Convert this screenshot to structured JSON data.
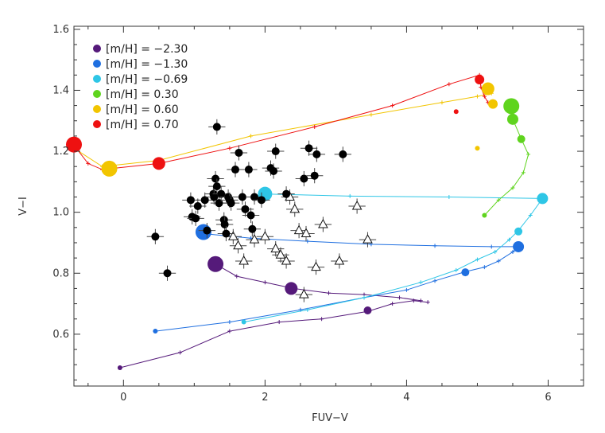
{
  "chart_data": {
    "type": "scatter",
    "xlabel": "FUV−V",
    "ylabel": "V−I",
    "xlim": [
      -0.7,
      6.5
    ],
    "ylim": [
      0.43,
      1.61
    ],
    "x_ticks": [
      0,
      2,
      4,
      6
    ],
    "y_ticks": [
      0.6,
      0.8,
      1.0,
      1.2,
      1.4,
      1.6
    ],
    "legend_position": "top-left",
    "series": [
      {
        "name": "[m/H] = −2.30",
        "color": "#551a7a",
        "track": [
          [
            -0.05,
            0.49
          ],
          [
            0.8,
            0.54
          ],
          [
            1.5,
            0.61
          ],
          [
            2.2,
            0.64
          ],
          [
            2.8,
            0.65
          ],
          [
            3.45,
            0.675
          ],
          [
            3.8,
            0.7
          ],
          [
            4.1,
            0.71
          ],
          [
            4.3,
            0.705
          ]
        ],
        "loop": [
          [
            1.3,
            0.83
          ],
          [
            1.6,
            0.79
          ],
          [
            2.0,
            0.77
          ],
          [
            2.4,
            0.75
          ],
          [
            2.9,
            0.735
          ],
          [
            3.4,
            0.73
          ],
          [
            3.9,
            0.72
          ],
          [
            4.2,
            0.71
          ]
        ],
        "markers": [
          [
            -0.05,
            0.49,
            3
          ],
          [
            3.45,
            0.678,
            5
          ],
          [
            2.37,
            0.75,
            8
          ],
          [
            1.3,
            0.83,
            10
          ]
        ]
      },
      {
        "name": "[m/H] = −1.30",
        "color": "#1f6fe0",
        "track": [
          [
            0.45,
            0.61
          ],
          [
            1.5,
            0.64
          ],
          [
            2.5,
            0.68
          ],
          [
            3.4,
            0.72
          ],
          [
            4.0,
            0.745
          ],
          [
            4.4,
            0.775
          ],
          [
            4.83,
            0.805
          ],
          [
            5.1,
            0.82
          ],
          [
            5.3,
            0.84
          ],
          [
            5.5,
            0.87
          ],
          [
            5.58,
            0.887
          ]
        ],
        "loop": [
          [
            1.13,
            0.93
          ],
          [
            1.8,
            0.915
          ],
          [
            2.6,
            0.905
          ],
          [
            3.5,
            0.895
          ],
          [
            4.4,
            0.89
          ],
          [
            5.2,
            0.887
          ],
          [
            5.58,
            0.887
          ]
        ],
        "markers": [
          [
            0.45,
            0.61,
            3
          ],
          [
            4.83,
            0.803,
            5
          ],
          [
            5.58,
            0.887,
            7
          ],
          [
            1.13,
            0.935,
            10
          ]
        ]
      },
      {
        "name": "[m/H] = −0.69",
        "color": "#2ec6e6",
        "track": [
          [
            1.7,
            0.64
          ],
          [
            2.6,
            0.68
          ],
          [
            3.4,
            0.72
          ],
          [
            4.2,
            0.77
          ],
          [
            4.7,
            0.81
          ],
          [
            5.0,
            0.845
          ],
          [
            5.25,
            0.87
          ],
          [
            5.45,
            0.91
          ],
          [
            5.58,
            0.94
          ],
          [
            5.75,
            0.99
          ],
          [
            5.92,
            1.045
          ]
        ],
        "loop": [
          [
            2.0,
            1.06
          ],
          [
            3.2,
            1.053
          ],
          [
            4.6,
            1.05
          ],
          [
            5.92,
            1.045
          ]
        ],
        "markers": [
          [
            1.7,
            0.64,
            3
          ],
          [
            5.58,
            0.937,
            5
          ],
          [
            5.92,
            1.045,
            7
          ],
          [
            2.0,
            1.06,
            9
          ]
        ]
      },
      {
        "name": "[m/H] = 0.30",
        "color": "#5fd41e",
        "track": [
          [
            5.1,
            0.99
          ],
          [
            5.3,
            1.04
          ],
          [
            5.5,
            1.08
          ],
          [
            5.65,
            1.13
          ],
          [
            5.72,
            1.19
          ],
          [
            5.62,
            1.24
          ],
          [
            5.5,
            1.305
          ],
          [
            5.48,
            1.348
          ]
        ],
        "markers": [
          [
            5.1,
            0.99,
            3
          ],
          [
            5.62,
            1.24,
            5
          ],
          [
            5.5,
            1.305,
            7
          ],
          [
            5.48,
            1.348,
            10
          ]
        ]
      },
      {
        "name": "[m/H] = 0.60",
        "color": "#f2c500",
        "track": [
          [
            -0.7,
            1.21
          ],
          [
            -0.3,
            1.15
          ],
          [
            0.5,
            1.17
          ],
          [
            1.8,
            1.25
          ],
          [
            3.5,
            1.32
          ],
          [
            4.5,
            1.36
          ],
          [
            5.0,
            1.38
          ],
          [
            5.2,
            1.39
          ]
        ],
        "markers": [
          [
            5.0,
            1.21,
            3
          ],
          [
            5.22,
            1.355,
            6
          ],
          [
            5.15,
            1.405,
            8
          ],
          [
            -0.2,
            1.143,
            10
          ]
        ]
      },
      {
        "name": "[m/H] = 0.70",
        "color": "#ee1111",
        "track": [
          [
            -0.7,
            1.22
          ],
          [
            -0.5,
            1.16
          ],
          [
            -0.3,
            1.14
          ],
          [
            0.5,
            1.16
          ],
          [
            1.5,
            1.21
          ],
          [
            2.7,
            1.28
          ],
          [
            3.8,
            1.35
          ],
          [
            4.6,
            1.42
          ],
          [
            5.03,
            1.45
          ],
          [
            5.05,
            1.41
          ],
          [
            5.1,
            1.38
          ],
          [
            5.15,
            1.36
          ]
        ],
        "markers": [
          [
            4.7,
            1.33,
            3
          ],
          [
            5.03,
            1.435,
            6
          ],
          [
            0.5,
            1.16,
            8
          ],
          [
            -0.7,
            1.222,
            10
          ]
        ]
      }
    ],
    "observed_circles": [
      [
        0.45,
        0.92
      ],
      [
        0.62,
        0.8
      ],
      [
        0.95,
        1.04
      ],
      [
        0.97,
        0.985
      ],
      [
        1.02,
        0.98
      ],
      [
        1.05,
        1.02
      ],
      [
        1.15,
        1.04
      ],
      [
        1.18,
        0.94
      ],
      [
        1.27,
        1.06
      ],
      [
        1.28,
        1.05
      ],
      [
        1.3,
        1.11
      ],
      [
        1.32,
        1.085
      ],
      [
        1.35,
        1.03
      ],
      [
        1.38,
        1.06
      ],
      [
        1.42,
        0.975
      ],
      [
        1.43,
        0.96
      ],
      [
        1.45,
        0.93
      ],
      [
        1.48,
        1.05
      ],
      [
        1.5,
        1.04
      ],
      [
        1.52,
        1.03
      ],
      [
        1.58,
        1.14
      ],
      [
        1.63,
        1.195
      ],
      [
        1.68,
        1.05
      ],
      [
        1.72,
        1.01
      ],
      [
        1.77,
        1.14
      ],
      [
        1.8,
        0.99
      ],
      [
        1.82,
        0.945
      ],
      [
        1.85,
        1.05
      ],
      [
        1.95,
        1.04
      ],
      [
        2.08,
        1.145
      ],
      [
        2.12,
        1.135
      ],
      [
        2.15,
        1.2
      ],
      [
        2.3,
        1.06
      ],
      [
        2.55,
        1.11
      ],
      [
        2.62,
        1.21
      ],
      [
        2.7,
        1.12
      ],
      [
        2.73,
        1.19
      ],
      [
        3.1,
        1.19
      ],
      [
        1.32,
        1.28
      ]
    ],
    "observed_triangles": [
      [
        1.55,
        0.92
      ],
      [
        1.62,
        0.89
      ],
      [
        1.7,
        0.84
      ],
      [
        1.85,
        0.91
      ],
      [
        2.0,
        0.92
      ],
      [
        2.15,
        0.88
      ],
      [
        2.22,
        0.86
      ],
      [
        2.3,
        0.84
      ],
      [
        2.35,
        1.05
      ],
      [
        2.42,
        1.01
      ],
      [
        2.48,
        0.94
      ],
      [
        2.55,
        0.73
      ],
      [
        2.58,
        0.93
      ],
      [
        2.72,
        0.82
      ],
      [
        2.82,
        0.96
      ],
      [
        3.05,
        0.84
      ],
      [
        3.3,
        1.02
      ],
      [
        3.45,
        0.91
      ]
    ]
  }
}
